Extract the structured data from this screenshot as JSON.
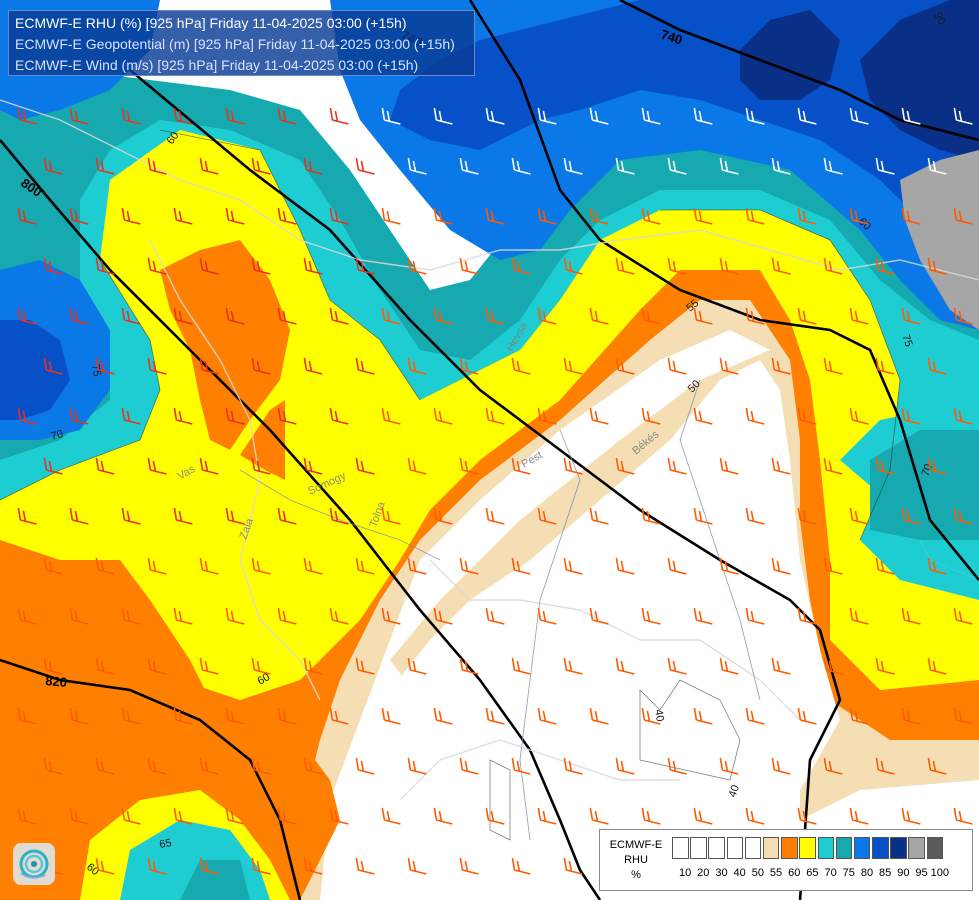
{
  "header": {
    "line1": "ECMWF-E RHU (%) [925 hPa] Friday 11-04-2025 03:00 (+15h)",
    "line2": "ECMWF-E Geopotential (m) [925 hPa] Friday 11-04-2025 03:00 (+15h)",
    "line3": "ECMWF-E Wind (m/s) [925 hPa] Friday 11-04-2025 03:00 (+15h)"
  },
  "contours": {
    "geopotential": [
      "740",
      "800",
      "820",
      "740"
    ],
    "rhu": [
      "60",
      "75",
      "70",
      "55",
      "50",
      "60",
      "65",
      "60",
      "40",
      "40",
      "70",
      "75",
      "60",
      "90"
    ]
  },
  "places": [
    "Hevsa",
    "Pest",
    "Békés",
    "Vas",
    "Zala",
    "Somogy",
    "Tolna"
  ],
  "legend": {
    "title1": "ECMWF-E",
    "title2": "RHU",
    "unit": "%",
    "levels": [
      "10",
      "20",
      "30",
      "40",
      "50",
      "55",
      "60",
      "65",
      "70",
      "75",
      "80",
      "85",
      "90",
      "95",
      "100"
    ],
    "colors": [
      "#ffffff",
      "#ffffff",
      "#ffffff",
      "#ffffff",
      "#ffffff",
      "#f5deb3",
      "#ff8000",
      "#ffff00",
      "#1ecdd2",
      "#16a9b0",
      "#0a78e6",
      "#0650c8",
      "#0a2f87",
      "#a6a6a6",
      "#5a5a5a"
    ]
  },
  "logo_icon": "swirl-logo-icon",
  "wind_barb_colors": [
    "#e8321e",
    "#ff5a00",
    "#ffb4c8",
    "#ffffff"
  ]
}
